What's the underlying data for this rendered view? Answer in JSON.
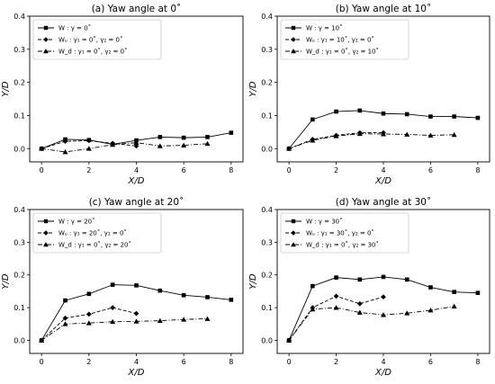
{
  "chart_data": [
    {
      "type": "line",
      "title": "(a) Yaw angle at 0˚",
      "xlabel": "X/D",
      "ylabel": "Y/D",
      "xlim": [
        -0.5,
        8.5
      ],
      "ylim": [
        -0.04,
        0.4
      ],
      "xticks": [
        "0",
        "2",
        "4",
        "6",
        "8"
      ],
      "yticks": [
        "0.0",
        "0.1",
        "0.2",
        "0.3",
        "0.4"
      ],
      "grid": false,
      "legend": "top-left",
      "series": [
        {
          "name": "W : γ = 0˚",
          "marker": "square",
          "dash": "solid",
          "x": [
            0,
            1,
            2,
            3,
            4,
            5,
            6,
            7,
            8
          ],
          "y": [
            0.0,
            0.028,
            0.026,
            0.013,
            0.025,
            0.035,
            0.033,
            0.035,
            0.048
          ]
        },
        {
          "name": "Wᵤ : γ₁ = 0˚, γ₂ = 0˚",
          "marker": "diamond",
          "dash": "dashed",
          "x": [
            0,
            1,
            2,
            3,
            4
          ],
          "y": [
            0.0,
            0.022,
            0.024,
            0.016,
            0.008
          ]
        },
        {
          "name": "W_d : γ₁ = 0˚, γ₂ = 0˚",
          "marker": "triangle",
          "dash": "dashdot",
          "x": [
            0,
            1,
            2,
            3,
            4,
            5,
            6,
            7
          ],
          "y": [
            0.0,
            -0.01,
            0.0,
            0.012,
            0.018,
            0.008,
            0.01,
            0.015
          ]
        }
      ]
    },
    {
      "type": "line",
      "title": "(b) Yaw angle at 10˚",
      "xlabel": "X/D",
      "ylabel": "Y/D",
      "xlim": [
        -0.5,
        8.5
      ],
      "ylim": [
        -0.04,
        0.4
      ],
      "xticks": [
        "0",
        "2",
        "4",
        "6",
        "8"
      ],
      "yticks": [
        "0.0",
        "0.1",
        "0.2",
        "0.3",
        "0.4"
      ],
      "grid": false,
      "legend": "top-left",
      "series": [
        {
          "name": "W : γ = 10˚",
          "marker": "square",
          "dash": "solid",
          "x": [
            0,
            1,
            2,
            3,
            4,
            5,
            6,
            7,
            8
          ],
          "y": [
            0.0,
            0.088,
            0.112,
            0.115,
            0.106,
            0.104,
            0.097,
            0.097,
            0.093
          ]
        },
        {
          "name": "Wᵤ : γ₁ = 10˚, γ₂ = 0˚",
          "marker": "diamond",
          "dash": "dashed",
          "x": [
            0,
            1,
            2,
            3,
            4
          ],
          "y": [
            0.0,
            0.028,
            0.04,
            0.048,
            0.048
          ]
        },
        {
          "name": "W_d : γ₁ = 0˚, γ₂ = 10˚",
          "marker": "triangle",
          "dash": "dashdot",
          "x": [
            0,
            1,
            2,
            3,
            4,
            5,
            6,
            7
          ],
          "y": [
            0.0,
            0.025,
            0.038,
            0.045,
            0.044,
            0.043,
            0.04,
            0.042
          ]
        }
      ]
    },
    {
      "type": "line",
      "title": "(c) Yaw angle at 20˚",
      "xlabel": "X/D",
      "ylabel": "Y/D",
      "xlim": [
        -0.5,
        8.5
      ],
      "ylim": [
        -0.04,
        0.4
      ],
      "xticks": [
        "0",
        "2",
        "4",
        "6",
        "8"
      ],
      "yticks": [
        "0.0",
        "0.1",
        "0.2",
        "0.3",
        "0.4"
      ],
      "grid": false,
      "legend": "top-left",
      "series": [
        {
          "name": "W : γ = 20˚",
          "marker": "square",
          "dash": "solid",
          "x": [
            0,
            1,
            2,
            3,
            4,
            5,
            6,
            7,
            8
          ],
          "y": [
            0.0,
            0.122,
            0.142,
            0.17,
            0.168,
            0.152,
            0.138,
            0.132,
            0.124
          ]
        },
        {
          "name": "Wᵤ : γ₁ = 20˚, γ₂ = 0˚",
          "marker": "diamond",
          "dash": "dashed",
          "x": [
            0,
            1,
            2,
            3,
            4
          ],
          "y": [
            0.0,
            0.068,
            0.08,
            0.1,
            0.082
          ]
        },
        {
          "name": "W_d : γ₁ = 0˚, γ₂ = 20˚",
          "marker": "triangle",
          "dash": "dashdot",
          "x": [
            0,
            1,
            2,
            3,
            4,
            5,
            6,
            7
          ],
          "y": [
            0.0,
            0.05,
            0.053,
            0.057,
            0.058,
            0.06,
            0.064,
            0.066
          ]
        }
      ]
    },
    {
      "type": "line",
      "title": "(d) Yaw angle at 30˚",
      "xlabel": "X/D",
      "ylabel": "Y/D",
      "xlim": [
        -0.5,
        8.5
      ],
      "ylim": [
        -0.04,
        0.4
      ],
      "xticks": [
        "0",
        "2",
        "4",
        "6",
        "8"
      ],
      "yticks": [
        "0.0",
        "0.1",
        "0.2",
        "0.3",
        "0.4"
      ],
      "grid": false,
      "legend": "top-left",
      "series": [
        {
          "name": "W : γ = 30˚",
          "marker": "square",
          "dash": "solid",
          "x": [
            0,
            1,
            2,
            3,
            4,
            5,
            6,
            7,
            8
          ],
          "y": [
            0.0,
            0.166,
            0.192,
            0.186,
            0.194,
            0.186,
            0.162,
            0.148,
            0.145
          ]
        },
        {
          "name": "Wᵤ : γ₁ = 30˚, γ₂ = 0˚",
          "marker": "diamond",
          "dash": "dashed",
          "x": [
            0,
            1,
            2,
            3,
            4
          ],
          "y": [
            0.0,
            0.1,
            0.135,
            0.112,
            0.133
          ]
        },
        {
          "name": "W_d : γ₁ = 0˚, γ₂ = 30˚",
          "marker": "triangle",
          "dash": "dashdot",
          "x": [
            0,
            1,
            2,
            3,
            4,
            5,
            6,
            7
          ],
          "y": [
            0.0,
            0.095,
            0.1,
            0.085,
            0.078,
            0.083,
            0.092,
            0.104
          ]
        }
      ]
    }
  ]
}
